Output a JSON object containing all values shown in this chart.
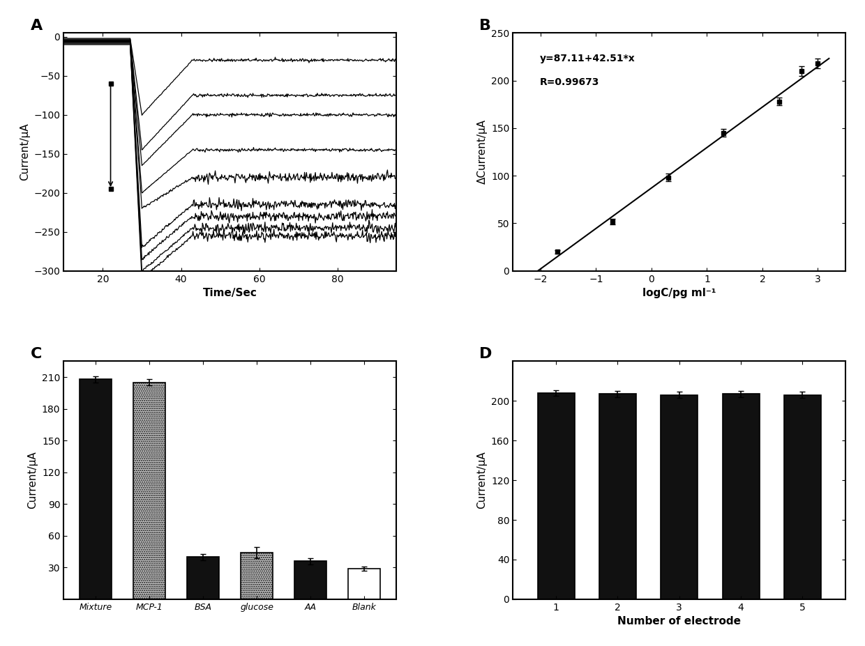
{
  "panel_A": {
    "title": "A",
    "xlabel": "Time/Sec",
    "ylabel": "Current/μA",
    "xlim": [
      10,
      95
    ],
    "ylim": [
      -300,
      5
    ],
    "xticks": [
      20,
      40,
      60,
      80
    ],
    "yticks": [
      0,
      -50,
      -100,
      -150,
      -200,
      -250,
      -300
    ],
    "curves": [
      {
        "steady": -30,
        "peak": -100
      },
      {
        "steady": -75,
        "peak": -145
      },
      {
        "steady": -100,
        "peak": -165
      },
      {
        "steady": -145,
        "peak": -200
      },
      {
        "steady": -180,
        "peak": -220
      },
      {
        "steady": -215,
        "peak": -270
      },
      {
        "steady": -230,
        "peak": -285
      },
      {
        "steady": -245,
        "peak": -300
      },
      {
        "steady": -255,
        "peak": -310
      }
    ]
  },
  "panel_B": {
    "title": "B",
    "xlabel": "logC/pg ml⁻¹",
    "ylabel": "ΔCurrent/μA",
    "xlim": [
      -2.5,
      3.5
    ],
    "ylim": [
      0,
      250
    ],
    "xticks": [
      -2,
      -1,
      0,
      1,
      2,
      3
    ],
    "yticks": [
      0,
      50,
      100,
      150,
      200,
      250
    ],
    "equation": "y=87.11+42.51*x",
    "R": "R=0.99673",
    "data_x": [
      -1.7,
      -0.7,
      0.3,
      1.3,
      2.3,
      2.7,
      3.0
    ],
    "data_y": [
      20,
      52,
      98,
      145,
      178,
      210,
      218
    ],
    "data_yerr": [
      2,
      3,
      4,
      4,
      4,
      5,
      5
    ]
  },
  "panel_C": {
    "title": "C",
    "xlabel": "",
    "ylabel": "Current/μA",
    "ylim": [
      0,
      225
    ],
    "yticks": [
      30,
      60,
      90,
      120,
      150,
      180,
      210
    ],
    "categories": [
      "Mixture",
      "MCP-1",
      "BSA",
      "glucose",
      "AA",
      "Blank"
    ],
    "values": [
      208,
      205,
      40,
      44,
      36,
      29
    ],
    "yerr": [
      3,
      3,
      3,
      5,
      3,
      2
    ],
    "colors": [
      "#111111",
      "#bbbbbb",
      "#111111",
      "#bbbbbb",
      "#111111",
      "#ffffff"
    ],
    "edgecolors": [
      "#000000",
      "#000000",
      "#000000",
      "#000000",
      "#000000",
      "#000000"
    ]
  },
  "panel_D": {
    "title": "D",
    "xlabel": "Number of electrode",
    "ylabel": "Current/μA",
    "ylim": [
      0,
      240
    ],
    "yticks": [
      0,
      40,
      80,
      120,
      160,
      200
    ],
    "categories": [
      "1",
      "2",
      "3",
      "4",
      "5"
    ],
    "values": [
      208,
      207,
      206,
      207,
      206
    ],
    "yerr": [
      3,
      3,
      3,
      3,
      3
    ],
    "color": "#111111"
  }
}
